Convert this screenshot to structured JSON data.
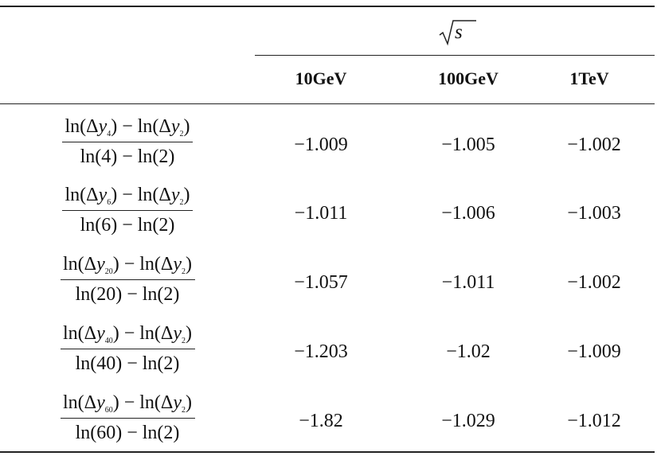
{
  "header": {
    "group_label": "s",
    "columns": [
      "10GeV",
      "100GeV",
      "1TeV"
    ]
  },
  "rows": [
    {
      "sub_n": "4",
      "den_n": "4",
      "sub_ref": "2",
      "den_ref": "2",
      "values": [
        "−1.009",
        "−1.005",
        "−1.002"
      ]
    },
    {
      "sub_n": "6",
      "den_n": "6",
      "sub_ref": "2",
      "den_ref": "2",
      "values": [
        "−1.011",
        "−1.006",
        "−1.003"
      ]
    },
    {
      "sub_n": "20",
      "den_n": "20",
      "sub_ref": "2",
      "den_ref": "2",
      "values": [
        "−1.057",
        "−1.011",
        "−1.002"
      ]
    },
    {
      "sub_n": "40",
      "den_n": "40",
      "sub_ref": "2",
      "den_ref": "2",
      "values": [
        "−1.203",
        "−1.02",
        "−1.009"
      ]
    },
    {
      "sub_n": "60",
      "den_n": "60",
      "sub_ref": "2",
      "den_ref": "2",
      "values": [
        "−1.82",
        "−1.029",
        "−1.012"
      ]
    }
  ]
}
